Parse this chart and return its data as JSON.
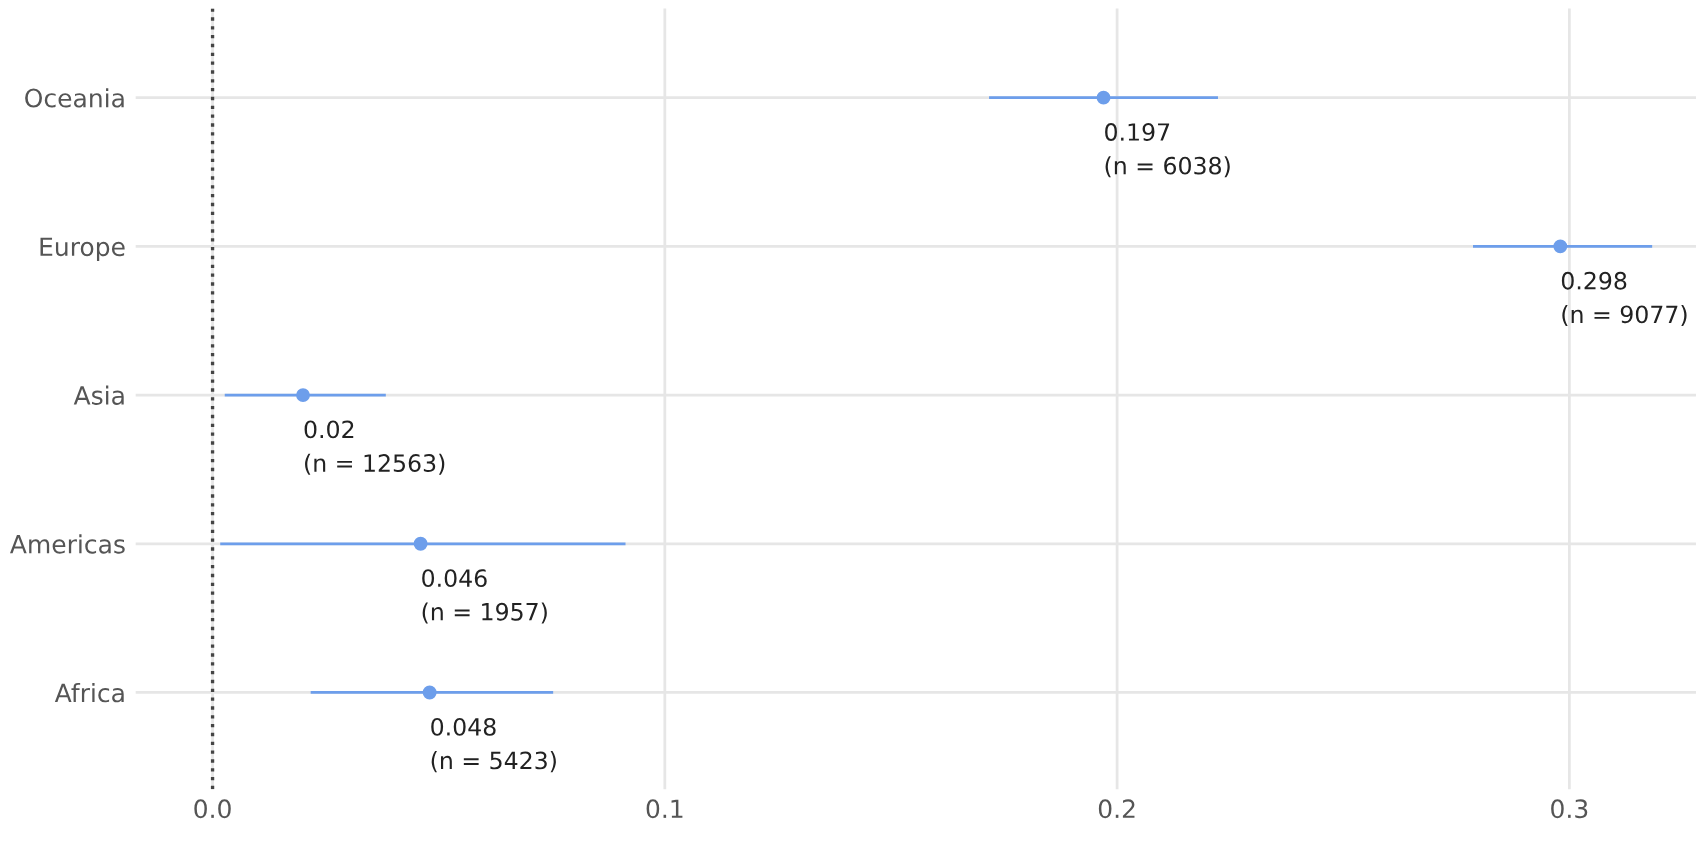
{
  "chart_data": {
    "type": "scatter",
    "orientation": "horizontal",
    "categories": [
      "Oceania",
      "Europe",
      "Asia",
      "Americas",
      "Africa"
    ],
    "values": [
      0.197,
      0.298,
      0.02,
      0.046,
      0.048
    ],
    "errors": [
      [
        0.172,
        0.222
      ],
      [
        0.279,
        0.318
      ],
      [
        0.003,
        0.038
      ],
      [
        0.002,
        0.091
      ],
      [
        0.022,
        0.075
      ]
    ],
    "value_labels": [
      "0.197\n(n = 6038)",
      "0.298\n(n = 9077)",
      "0.02\n(n = 12563)",
      "0.046\n(n = 1957)",
      "0.048\n(n = 5423)"
    ],
    "color": "#6d9eeb",
    "marker": "circle",
    "grid": true,
    "xlim": [
      -0.017,
      0.328
    ],
    "xticks": [
      {
        "value": 0,
        "label": "0.0"
      },
      0.1,
      0.2,
      0.3
    ],
    "ref_lines": [
      {
        "axis": "x",
        "value": 0,
        "color": "#444444",
        "line_style": "dotted"
      }
    ]
  }
}
